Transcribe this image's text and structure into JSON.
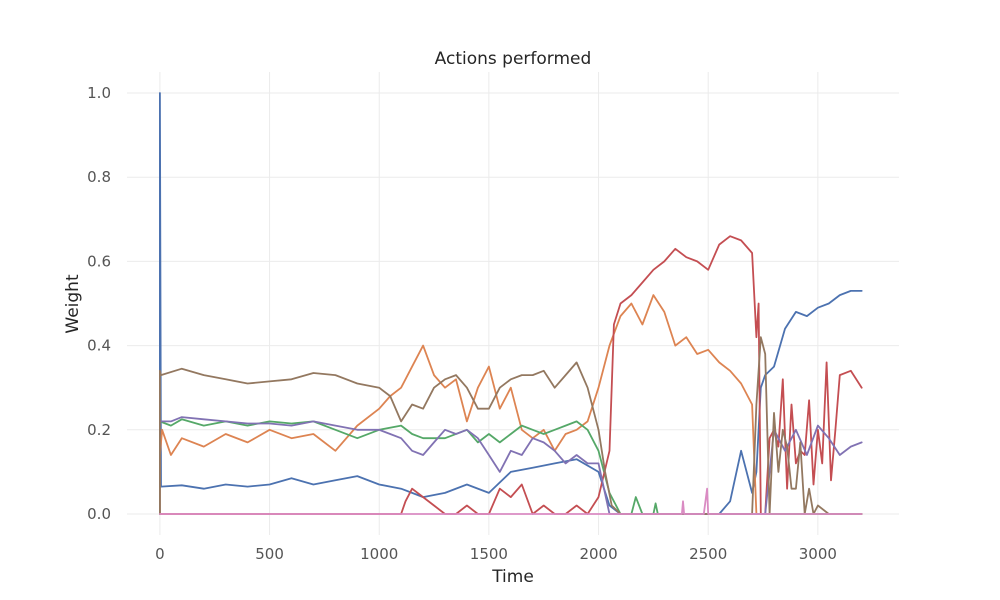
{
  "chart_data": {
    "type": "line",
    "title": "Actions performed",
    "xlabel": "Time",
    "ylabel": "Weight",
    "xlim": [
      -150,
      3370
    ],
    "ylim": [
      -0.05,
      1.05
    ],
    "xticks": [
      0,
      500,
      1000,
      1500,
      2000,
      2500,
      3000
    ],
    "yticks": [
      0.0,
      0.2,
      0.4,
      0.6,
      0.8,
      1.0
    ],
    "xtick_labels": [
      "0",
      "500",
      "1000",
      "1500",
      "2000",
      "2500",
      "3000"
    ],
    "ytick_labels": [
      "0.0",
      "0.2",
      "0.4",
      "0.6",
      "0.8",
      "1.0"
    ],
    "grid": true,
    "legend": "none",
    "series": [
      {
        "color": "#4c72b0",
        "x": [
          0,
          0,
          5,
          100,
          200,
          300,
          400,
          500,
          600,
          700,
          800,
          900,
          1000,
          1100,
          1150,
          1200,
          1300,
          1400,
          1500,
          1600,
          1700,
          1800,
          1900,
          2000,
          2050,
          2100,
          2200,
          2300,
          2400,
          2500,
          2550,
          2600,
          2650,
          2700,
          2720,
          2740,
          2760,
          2800,
          2850,
          2900,
          2950,
          3000,
          3050,
          3100,
          3150,
          3200
        ],
        "y": [
          0.0,
          1.0,
          0.065,
          0.068,
          0.06,
          0.07,
          0.065,
          0.07,
          0.085,
          0.07,
          0.08,
          0.09,
          0.07,
          0.06,
          0.05,
          0.04,
          0.05,
          0.07,
          0.05,
          0.1,
          0.11,
          0.12,
          0.13,
          0.1,
          0.02,
          0.0,
          0.0,
          0.0,
          0.0,
          0.0,
          0.0,
          0.03,
          0.15,
          0.05,
          0.1,
          0.3,
          0.33,
          0.35,
          0.44,
          0.48,
          0.47,
          0.49,
          0.5,
          0.52,
          0.53,
          0.53
        ]
      },
      {
        "color": "#dd8452",
        "x": [
          0,
          0,
          10,
          50,
          100,
          200,
          300,
          400,
          500,
          600,
          700,
          800,
          900,
          1000,
          1050,
          1100,
          1150,
          1200,
          1250,
          1300,
          1350,
          1400,
          1450,
          1500,
          1550,
          1600,
          1650,
          1700,
          1750,
          1800,
          1850,
          1900,
          1950,
          2000,
          2050,
          2100,
          2150,
          2200,
          2250,
          2300,
          2350,
          2400,
          2450,
          2500,
          2550,
          2600,
          2650,
          2700,
          2720,
          2740,
          2760,
          2800,
          2900,
          2950,
          3000,
          3100,
          3200
        ],
        "y": [
          0.0,
          0.14,
          0.2,
          0.14,
          0.18,
          0.16,
          0.19,
          0.17,
          0.2,
          0.18,
          0.19,
          0.15,
          0.21,
          0.25,
          0.28,
          0.3,
          0.35,
          0.4,
          0.33,
          0.3,
          0.32,
          0.22,
          0.3,
          0.35,
          0.25,
          0.3,
          0.2,
          0.18,
          0.2,
          0.15,
          0.19,
          0.2,
          0.22,
          0.3,
          0.4,
          0.47,
          0.5,
          0.45,
          0.52,
          0.48,
          0.4,
          0.42,
          0.38,
          0.39,
          0.36,
          0.34,
          0.31,
          0.26,
          0.0,
          0.0,
          0.0,
          0.0,
          0.0,
          0.0,
          0.0,
          0.0,
          0.0
        ]
      },
      {
        "color": "#55a868",
        "x": [
          0,
          50,
          100,
          200,
          300,
          400,
          500,
          600,
          700,
          800,
          900,
          1000,
          1100,
          1150,
          1200,
          1300,
          1400,
          1450,
          1500,
          1550,
          1600,
          1650,
          1700,
          1750,
          1800,
          1850,
          1900,
          1950,
          2000,
          2050,
          2100,
          2150,
          2170,
          2200,
          2250,
          2260,
          2270,
          2300,
          2400,
          2500,
          2700,
          2900,
          3000,
          3100,
          3200
        ],
        "y": [
          0.22,
          0.21,
          0.225,
          0.21,
          0.22,
          0.21,
          0.22,
          0.215,
          0.22,
          0.2,
          0.18,
          0.2,
          0.21,
          0.19,
          0.18,
          0.18,
          0.2,
          0.17,
          0.19,
          0.17,
          0.19,
          0.21,
          0.2,
          0.19,
          0.2,
          0.21,
          0.22,
          0.2,
          0.15,
          0.05,
          0.0,
          0.0,
          0.04,
          0.0,
          0.0,
          0.025,
          0.0,
          0.0,
          0.0,
          0.0,
          0.0,
          0.0,
          0.0,
          0.0,
          0.0
        ]
      },
      {
        "color": "#c44e52",
        "x": [
          0,
          1100,
          1120,
          1150,
          1200,
          1250,
          1300,
          1350,
          1400,
          1450,
          1500,
          1550,
          1600,
          1650,
          1700,
          1750,
          1800,
          1850,
          1900,
          1950,
          2000,
          2050,
          2070,
          2100,
          2150,
          2200,
          2250,
          2300,
          2350,
          2400,
          2450,
          2500,
          2550,
          2600,
          2650,
          2700,
          2720,
          2730,
          2740,
          2760,
          2780,
          2800,
          2820,
          2840,
          2860,
          2880,
          2900,
          2920,
          2940,
          2960,
          2980,
          3000,
          3020,
          3040,
          3060,
          3080,
          3100,
          3150,
          3200
        ],
        "y": [
          0.0,
          0.0,
          0.03,
          0.06,
          0.04,
          0.02,
          0.0,
          0.0,
          0.02,
          0.0,
          0.0,
          0.06,
          0.04,
          0.07,
          0.0,
          0.02,
          0.0,
          0.0,
          0.02,
          0.0,
          0.04,
          0.15,
          0.45,
          0.5,
          0.52,
          0.55,
          0.58,
          0.6,
          0.63,
          0.61,
          0.6,
          0.58,
          0.64,
          0.66,
          0.65,
          0.62,
          0.42,
          0.5,
          0.0,
          0.0,
          0.18,
          0.2,
          0.16,
          0.32,
          0.06,
          0.26,
          0.12,
          0.15,
          0.14,
          0.27,
          0.07,
          0.2,
          0.12,
          0.36,
          0.08,
          0.2,
          0.33,
          0.34,
          0.3
        ]
      },
      {
        "color": "#8172b3",
        "x": [
          0,
          50,
          100,
          200,
          300,
          400,
          500,
          600,
          700,
          800,
          900,
          1000,
          1050,
          1100,
          1150,
          1200,
          1250,
          1300,
          1350,
          1400,
          1450,
          1500,
          1550,
          1600,
          1650,
          1700,
          1750,
          1800,
          1850,
          1900,
          1950,
          2000,
          2050,
          2100,
          2200,
          2400,
          2600,
          2700,
          2760,
          2800,
          2850,
          2900,
          2950,
          3000,
          3050,
          3100,
          3150,
          3200
        ],
        "y": [
          0.22,
          0.22,
          0.23,
          0.225,
          0.22,
          0.215,
          0.215,
          0.21,
          0.22,
          0.21,
          0.2,
          0.2,
          0.19,
          0.18,
          0.15,
          0.14,
          0.17,
          0.2,
          0.19,
          0.2,
          0.18,
          0.14,
          0.1,
          0.15,
          0.14,
          0.18,
          0.17,
          0.15,
          0.12,
          0.14,
          0.12,
          0.12,
          0.0,
          0.0,
          0.0,
          0.0,
          0.0,
          0.0,
          0.0,
          0.2,
          0.15,
          0.2,
          0.14,
          0.21,
          0.18,
          0.14,
          0.16,
          0.17
        ]
      },
      {
        "color": "#937860",
        "x": [
          0,
          0,
          5,
          100,
          200,
          300,
          400,
          500,
          600,
          700,
          800,
          900,
          1000,
          1050,
          1100,
          1150,
          1200,
          1250,
          1300,
          1350,
          1400,
          1450,
          1500,
          1550,
          1600,
          1650,
          1700,
          1750,
          1800,
          1850,
          1900,
          1950,
          2000,
          2030,
          2060,
          2100,
          2200,
          2400,
          2600,
          2700,
          2720,
          2740,
          2760,
          2780,
          2800,
          2820,
          2840,
          2860,
          2880,
          2900,
          2920,
          2940,
          2960,
          2980,
          3000,
          3050,
          3100,
          3200
        ],
        "y": [
          0.0,
          0.34,
          0.33,
          0.345,
          0.33,
          0.32,
          0.31,
          0.315,
          0.32,
          0.335,
          0.33,
          0.31,
          0.3,
          0.28,
          0.22,
          0.26,
          0.25,
          0.3,
          0.32,
          0.33,
          0.3,
          0.25,
          0.25,
          0.3,
          0.32,
          0.33,
          0.33,
          0.34,
          0.3,
          0.33,
          0.36,
          0.3,
          0.2,
          0.1,
          0.02,
          0.0,
          0.0,
          0.0,
          0.0,
          0.0,
          0.26,
          0.42,
          0.38,
          0.0,
          0.24,
          0.1,
          0.2,
          0.16,
          0.06,
          0.06,
          0.17,
          0.0,
          0.06,
          0.0,
          0.02,
          0.0,
          0.0,
          0.0
        ]
      },
      {
        "color": "#da8bc3",
        "x": [
          0,
          2350,
          2380,
          2385,
          2390,
          2400,
          2480,
          2490,
          2495,
          2500,
          2510,
          3200
        ],
        "y": [
          0.0,
          0.0,
          0.0,
          0.03,
          0.0,
          0.0,
          0.0,
          0.04,
          0.06,
          0.0,
          0.0,
          0.0
        ]
      }
    ]
  }
}
